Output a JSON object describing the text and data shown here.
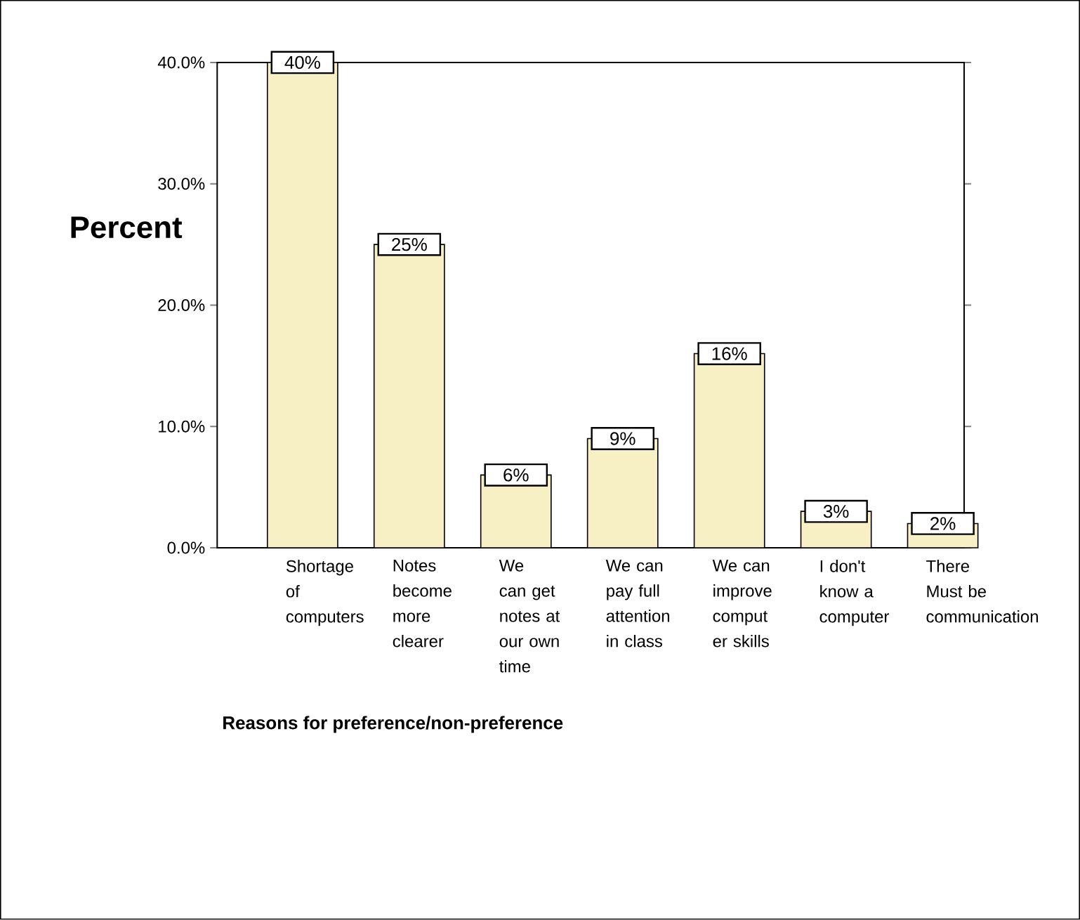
{
  "chart_data": {
    "type": "bar",
    "xlabel": "Reasons for preference/non-preference",
    "ylabel": "Percent",
    "categories": [
      "Shortage of computers",
      "Notes become more clearer",
      "We can get notes at our own time",
      "We can pay full attention in class",
      "We can improve comput er skills",
      "I don't know a computer",
      "There Must be communication"
    ],
    "values": [
      40,
      25,
      6,
      9,
      16,
      3,
      2
    ],
    "value_labels": [
      "40%",
      "25%",
      "6%",
      "9%",
      "16%",
      "3%",
      "2%"
    ],
    "color": "#f7f0c4",
    "ylim": [
      0,
      40
    ],
    "yticks": [
      {
        "value": 0,
        "label": "0.0%"
      },
      {
        "value": 10,
        "label": "10.0%"
      },
      {
        "value": 20,
        "label": "20.0%"
      },
      {
        "value": 30,
        "label": "30.0%"
      },
      {
        "value": 40,
        "label": "40.0%"
      }
    ],
    "grid": false
  }
}
